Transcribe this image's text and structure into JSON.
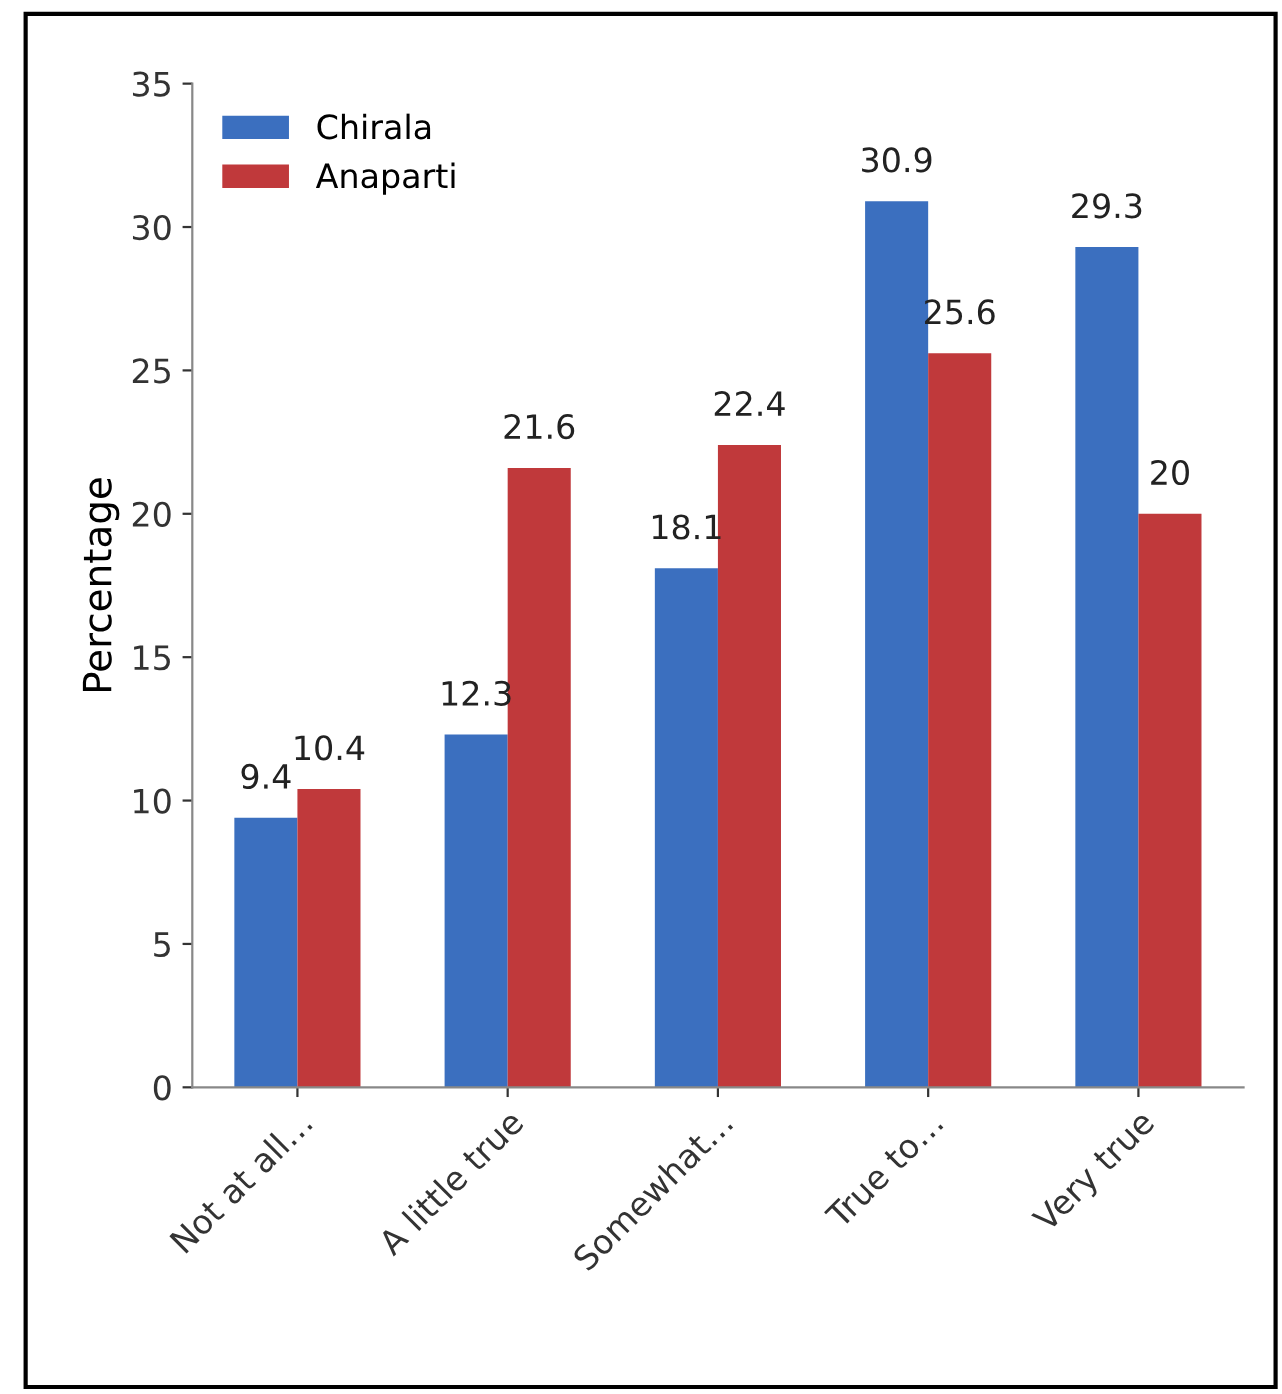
{
  "chart_data": {
    "type": "bar",
    "ylabel": "Percentage",
    "categories": [
      "Not at all…",
      "A little true",
      "Somewhat…",
      "True to…",
      "Very true"
    ],
    "series": [
      {
        "name": "Chirala",
        "color": "#3b6fbf",
        "values": [
          9.4,
          12.3,
          18.1,
          30.9,
          29.3
        ]
      },
      {
        "name": "Anaparti",
        "color": "#c0393b",
        "values": [
          10.4,
          21.6,
          22.4,
          25.6,
          20
        ]
      }
    ],
    "ylim": [
      0,
      35
    ],
    "yticks": [
      0,
      5,
      10,
      15,
      20,
      25,
      30,
      35
    ],
    "data_labels": true,
    "legend": "top left",
    "grid": false
  }
}
